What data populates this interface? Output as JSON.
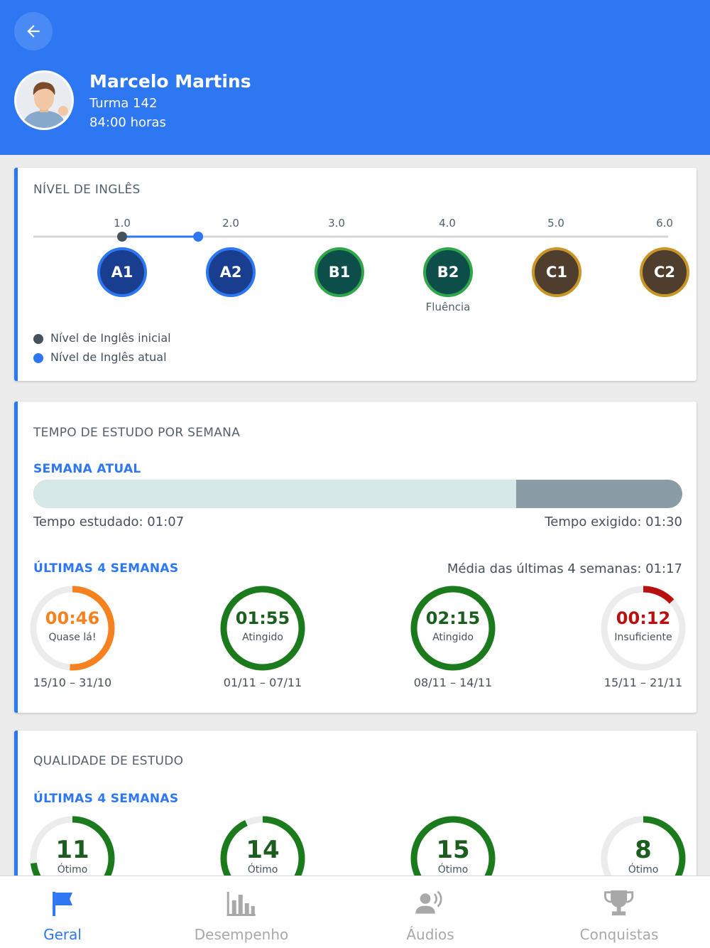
{
  "header": {
    "name": "Marcelo Martins",
    "class": "Turma 142",
    "hours": "84:00 horas"
  },
  "english_level": {
    "title": "NÍVEL DE INGLÊS",
    "scale": [
      "1.0",
      "2.0",
      "3.0",
      "4.0",
      "5.0",
      "6.0"
    ],
    "levels": [
      "A1",
      "A2",
      "B1",
      "B2",
      "C1",
      "C2"
    ],
    "fluency_label": "Fluência",
    "initial_level": 1.0,
    "current_level": 1.7,
    "legend_initial": "Nível de Inglês inicial",
    "legend_current": "Nível de Inglês atual"
  },
  "study_time": {
    "title": "TEMPO DE ESTUDO POR SEMANA",
    "current_week_title": "SEMANA ATUAL",
    "progress_fraction": 0.744,
    "studied": "Tempo estudado: 01:07",
    "required": "Tempo exigido: 01:30",
    "last4_title": "ÚLTIMAS 4 SEMANAS",
    "average": "Média das últimas 4 semanas: 01:17",
    "weeks": [
      {
        "time": "00:46",
        "status": "Quase lá!",
        "range": "15/10 – 31/10",
        "fraction": 0.51,
        "color": "#f5821f"
      },
      {
        "time": "01:55",
        "status": "Atingido",
        "range": "01/11 – 07/11",
        "fraction": 1.0,
        "color": "#1b7a1b"
      },
      {
        "time": "02:15",
        "status": "Atingido",
        "range": "08/11 – 14/11",
        "fraction": 1.0,
        "color": "#1b7a1b"
      },
      {
        "time": "00:12",
        "status": "Insuficiente",
        "range": "15/11 – 21/11",
        "fraction": 0.13,
        "color": "#b80f0f"
      }
    ]
  },
  "study_quality": {
    "title": "QUALIDADE DE ESTUDO",
    "last4_title": "ÚLTIMAS 4 SEMANAS",
    "weeks": [
      {
        "value": "11",
        "status": "Ótimo",
        "fraction": 0.73,
        "color": "#1b7a1b"
      },
      {
        "value": "14",
        "status": "Ótimo",
        "fraction": 0.93,
        "color": "#1b7a1b"
      },
      {
        "value": "15",
        "status": "Ótimo",
        "fraction": 1.0,
        "color": "#1b7a1b"
      },
      {
        "value": "8",
        "status": "Ótimo",
        "fraction": 0.53,
        "color": "#1b7a1b"
      }
    ]
  },
  "nav": [
    {
      "label": "Geral",
      "icon": "flag-icon",
      "active": true
    },
    {
      "label": "Desempenho",
      "icon": "bar-chart-icon",
      "active": false
    },
    {
      "label": "Áudios",
      "icon": "speaker-person-icon",
      "active": false
    },
    {
      "label": "Conquistas",
      "icon": "trophy-icon",
      "active": false
    }
  ],
  "colors": {
    "primary": "#2d77f3",
    "success": "#1b7a1b",
    "warning": "#f5821f",
    "danger": "#b80f0f"
  }
}
